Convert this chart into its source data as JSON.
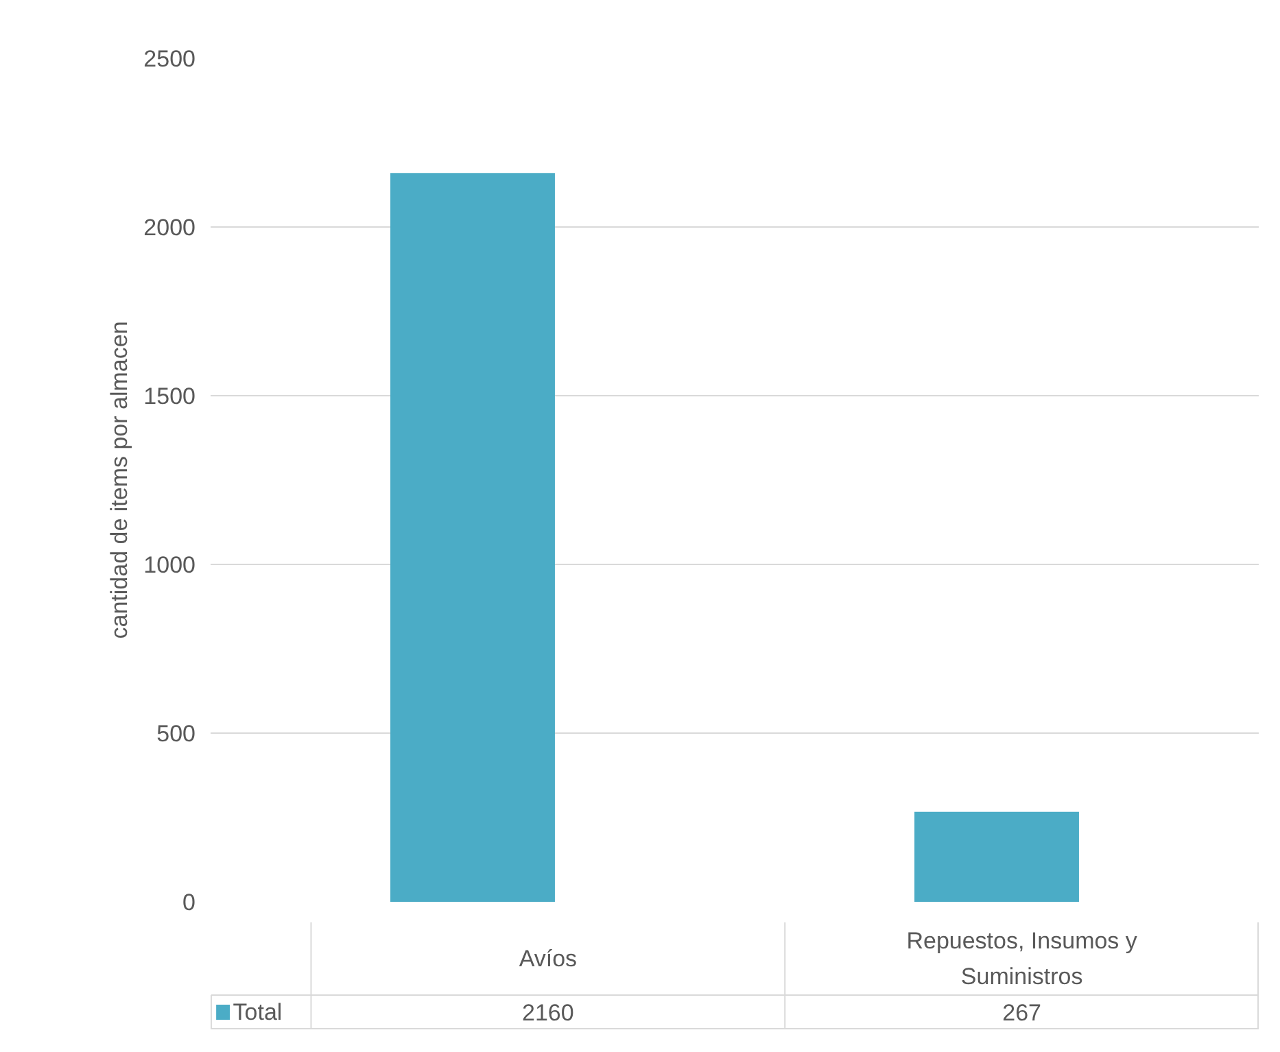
{
  "chart_data": {
    "type": "bar",
    "ylabel": "cantidad de items por almacen",
    "categories": [
      "Avíos",
      "Repuestos, Insumos y Suministros"
    ],
    "series": [
      {
        "name": "Total",
        "color": "#4bacc6",
        "values": [
          2160,
          267
        ]
      }
    ],
    "ylim": [
      0,
      2500
    ],
    "yticks": [
      0,
      500,
      1000,
      1500,
      2000,
      2500
    ],
    "grid": "y",
    "data_labels": true,
    "legend": "bottom"
  }
}
